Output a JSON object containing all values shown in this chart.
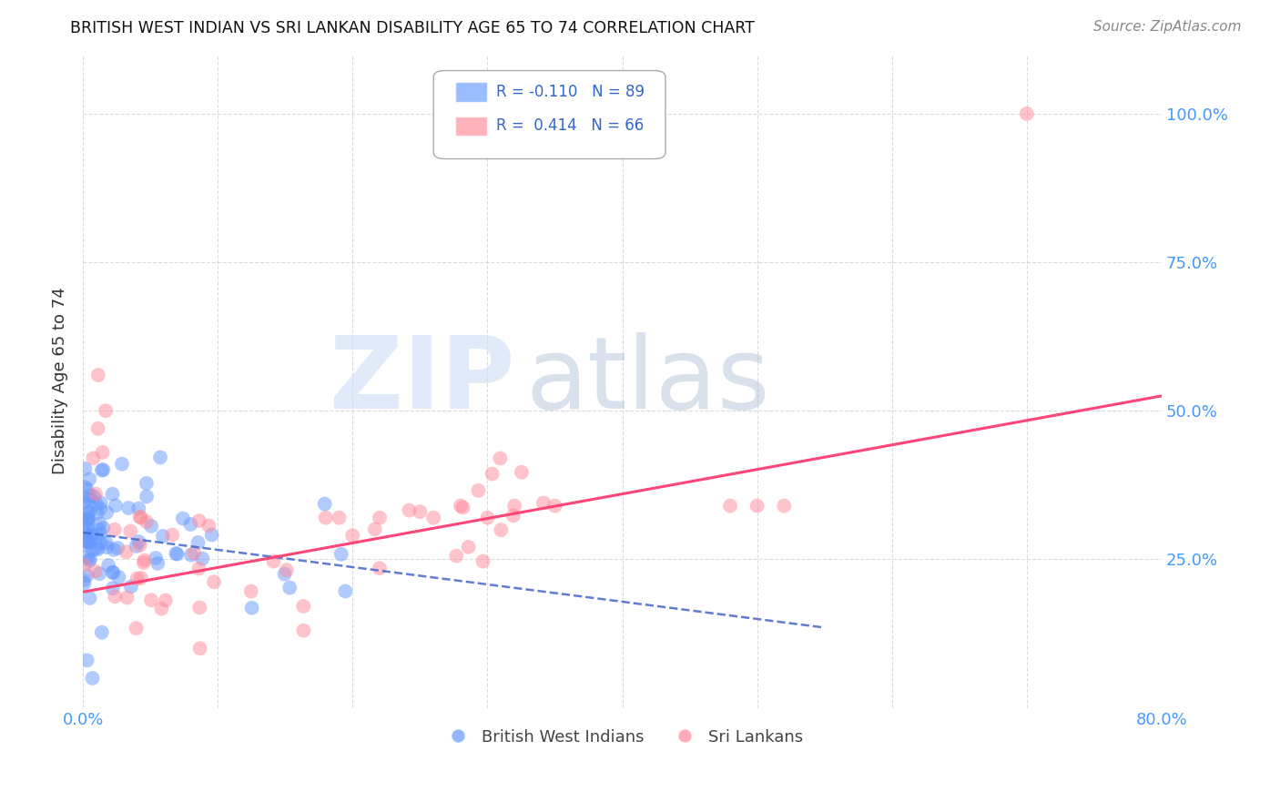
{
  "title": "BRITISH WEST INDIAN VS SRI LANKAN DISABILITY AGE 65 TO 74 CORRELATION CHART",
  "source": "Source: ZipAtlas.com",
  "ylabel": "Disability Age 65 to 74",
  "xlabel": "",
  "xlim": [
    0.0,
    0.8
  ],
  "ylim": [
    0.0,
    1.1
  ],
  "x_ticks": [
    0.0,
    0.1,
    0.2,
    0.3,
    0.4,
    0.5,
    0.6,
    0.7,
    0.8
  ],
  "x_tick_labels": [
    "0.0%",
    "",
    "",
    "",
    "",
    "",
    "",
    "",
    "80.0%"
  ],
  "y_ticks": [
    0.0,
    0.25,
    0.5,
    0.75,
    1.0
  ],
  "y_tick_labels": [
    "",
    "25.0%",
    "50.0%",
    "75.0%",
    "100.0%"
  ],
  "grid_color": "#cccccc",
  "background_color": "#ffffff",
  "bwi_color": "#6699ff",
  "sri_color": "#ff8899",
  "bwi_line_color": "#4466cc",
  "sri_line_color": "#ff4477",
  "bwi_R": -0.11,
  "bwi_N": 89,
  "sri_R": 0.414,
  "sri_N": 66,
  "legend_label_bwi": "British West Indians",
  "legend_label_sri": "Sri Lankans",
  "bwi_line_x0": 0.0,
  "bwi_line_x1": 0.55,
  "bwi_line_y0": 0.295,
  "bwi_line_y1": 0.135,
  "sri_line_x0": 0.0,
  "sri_line_x1": 0.8,
  "sri_line_y0": 0.195,
  "sri_line_y1": 0.525
}
